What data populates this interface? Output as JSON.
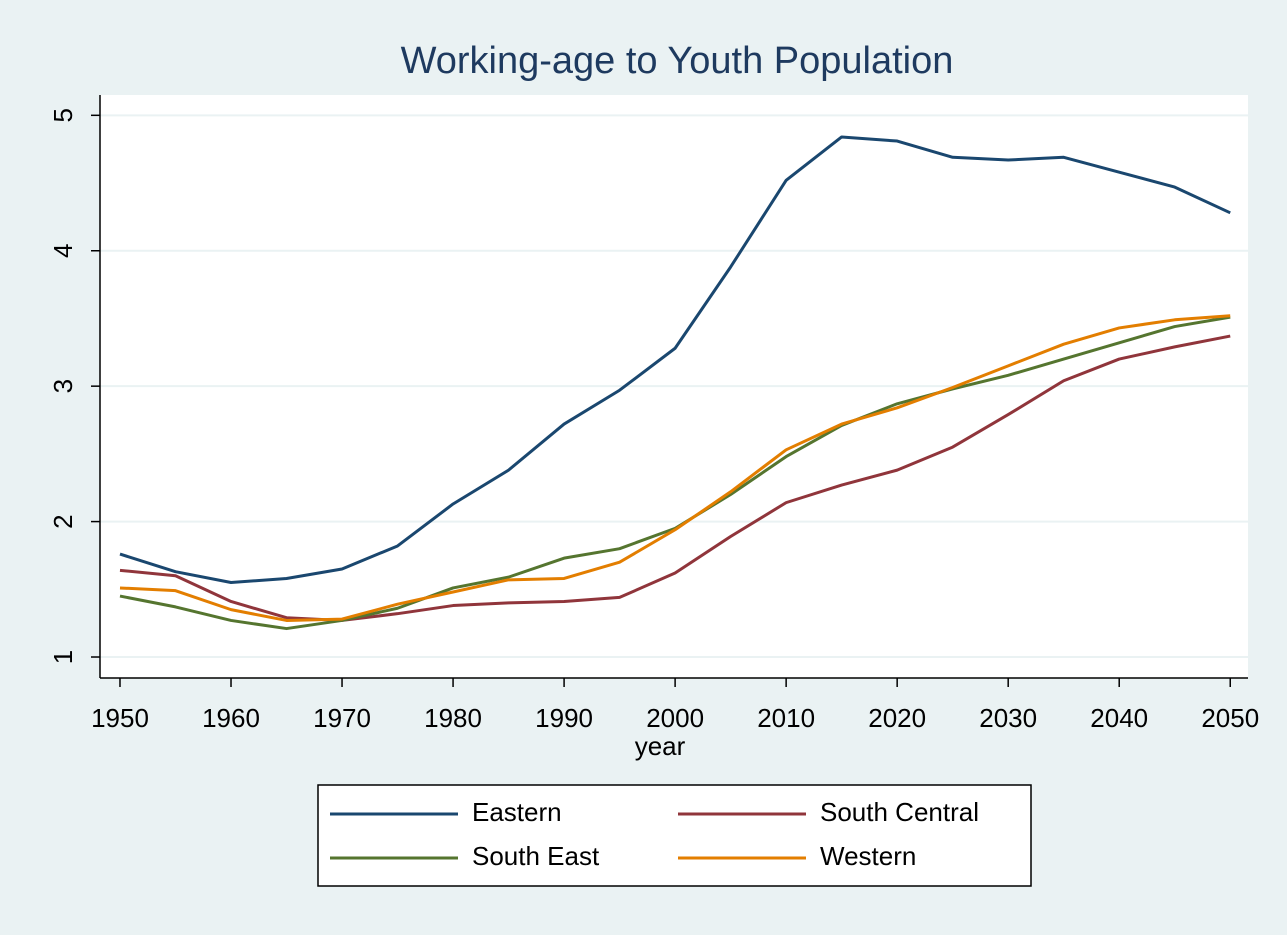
{
  "chart_data": {
    "type": "line",
    "title": "Working-age to Youth Population",
    "x_label": "year",
    "x": [
      1950,
      1955,
      1960,
      1965,
      1970,
      1975,
      1980,
      1985,
      1990,
      1995,
      2000,
      2005,
      2010,
      2015,
      2020,
      2025,
      2030,
      2035,
      2040,
      2045,
      2050
    ],
    "series": [
      {
        "name": "Eastern",
        "color": "#1a476f",
        "values": [
          1.76,
          1.63,
          1.55,
          1.58,
          1.65,
          1.82,
          2.13,
          2.38,
          2.72,
          2.97,
          3.28,
          3.88,
          4.52,
          4.84,
          4.81,
          4.69,
          4.67,
          4.69,
          4.58,
          4.47,
          4.28
        ]
      },
      {
        "name": "South Central",
        "color": "#90353b",
        "values": [
          1.64,
          1.6,
          1.41,
          1.29,
          1.27,
          1.32,
          1.38,
          1.4,
          1.41,
          1.44,
          1.62,
          1.89,
          2.14,
          2.27,
          2.38,
          2.55,
          2.79,
          3.04,
          3.2,
          3.29,
          3.37
        ]
      },
      {
        "name": "South East",
        "color": "#55752f",
        "values": [
          1.45,
          1.37,
          1.27,
          1.21,
          1.27,
          1.36,
          1.51,
          1.59,
          1.73,
          1.8,
          1.95,
          2.2,
          2.48,
          2.71,
          2.87,
          2.98,
          3.08,
          3.2,
          3.32,
          3.44,
          3.51
        ]
      },
      {
        "name": "Western",
        "color": "#e37e00",
        "values": [
          1.51,
          1.49,
          1.35,
          1.27,
          1.28,
          1.39,
          1.48,
          1.57,
          1.58,
          1.7,
          1.94,
          2.22,
          2.53,
          2.72,
          2.84,
          2.99,
          3.15,
          3.31,
          3.43,
          3.49,
          3.52
        ]
      }
    ],
    "xlim": [
      1948.2,
      2051.6
    ],
    "ylim": [
      0.845,
      5.15
    ],
    "xticks": [
      1950,
      1960,
      1970,
      1980,
      1990,
      2000,
      2010,
      2020,
      2030,
      2040,
      2050
    ],
    "yticks": [
      1,
      2,
      3,
      4,
      5
    ],
    "grid": true,
    "legend_position": "bottom"
  }
}
